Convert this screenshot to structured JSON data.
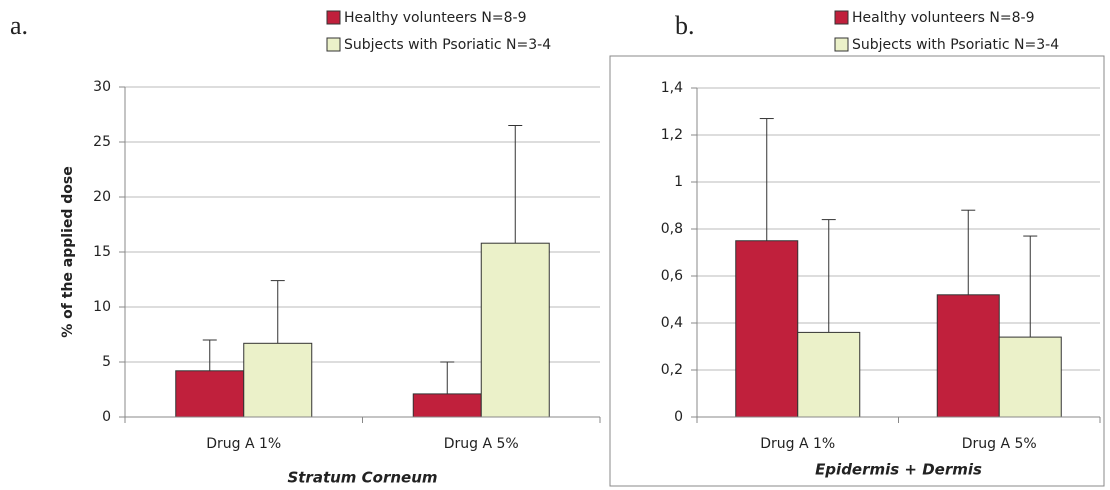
{
  "chart_data": [
    {
      "type": "bar",
      "panel_label": "a.",
      "x_label": "Stratum Corneum",
      "y_label": "% of the applied dose",
      "categories": [
        "Drug A 1%",
        "Drug A 5%"
      ],
      "series": [
        {
          "name": "Healthy volunteers N=8-9",
          "color": "#c0203c",
          "values": [
            4.2,
            2.1
          ],
          "errors": [
            2.8,
            2.9
          ]
        },
        {
          "name": "Subjects with Psoriatic N=3-4",
          "color": "#ebf1c9",
          "values": [
            6.7,
            15.8
          ],
          "errors": [
            5.7,
            10.7
          ]
        }
      ],
      "ylim": [
        0,
        30
      ],
      "yticks": [
        0,
        5,
        10,
        15,
        20,
        25,
        30
      ],
      "grid": true
    },
    {
      "type": "bar",
      "panel_label": "b.",
      "x_label": "Epidermis + Dermis",
      "categories": [
        "Drug A 1%",
        "Drug A 5%"
      ],
      "series": [
        {
          "name": "Healthy volunteers N=8-9",
          "color": "#c0203c",
          "values": [
            0.75,
            0.52
          ],
          "errors": [
            0.52,
            0.36
          ]
        },
        {
          "name": "Subjects with Psoriatic N=3-4",
          "color": "#ebf1c9",
          "values": [
            0.36,
            0.34
          ],
          "errors": [
            0.48,
            0.43
          ]
        }
      ],
      "ylim": [
        0,
        1.4
      ],
      "yticks": [
        0,
        {
          "value": 0.2,
          "label": "0,2"
        },
        {
          "value": 0.4,
          "label": "0,4"
        },
        {
          "value": 0.6,
          "label": "0,6"
        },
        {
          "value": 0.8,
          "label": "0,8"
        },
        1,
        {
          "value": 1.2,
          "label": "1,2"
        },
        {
          "value": 1.4,
          "label": "1,4"
        }
      ],
      "grid": true
    }
  ]
}
